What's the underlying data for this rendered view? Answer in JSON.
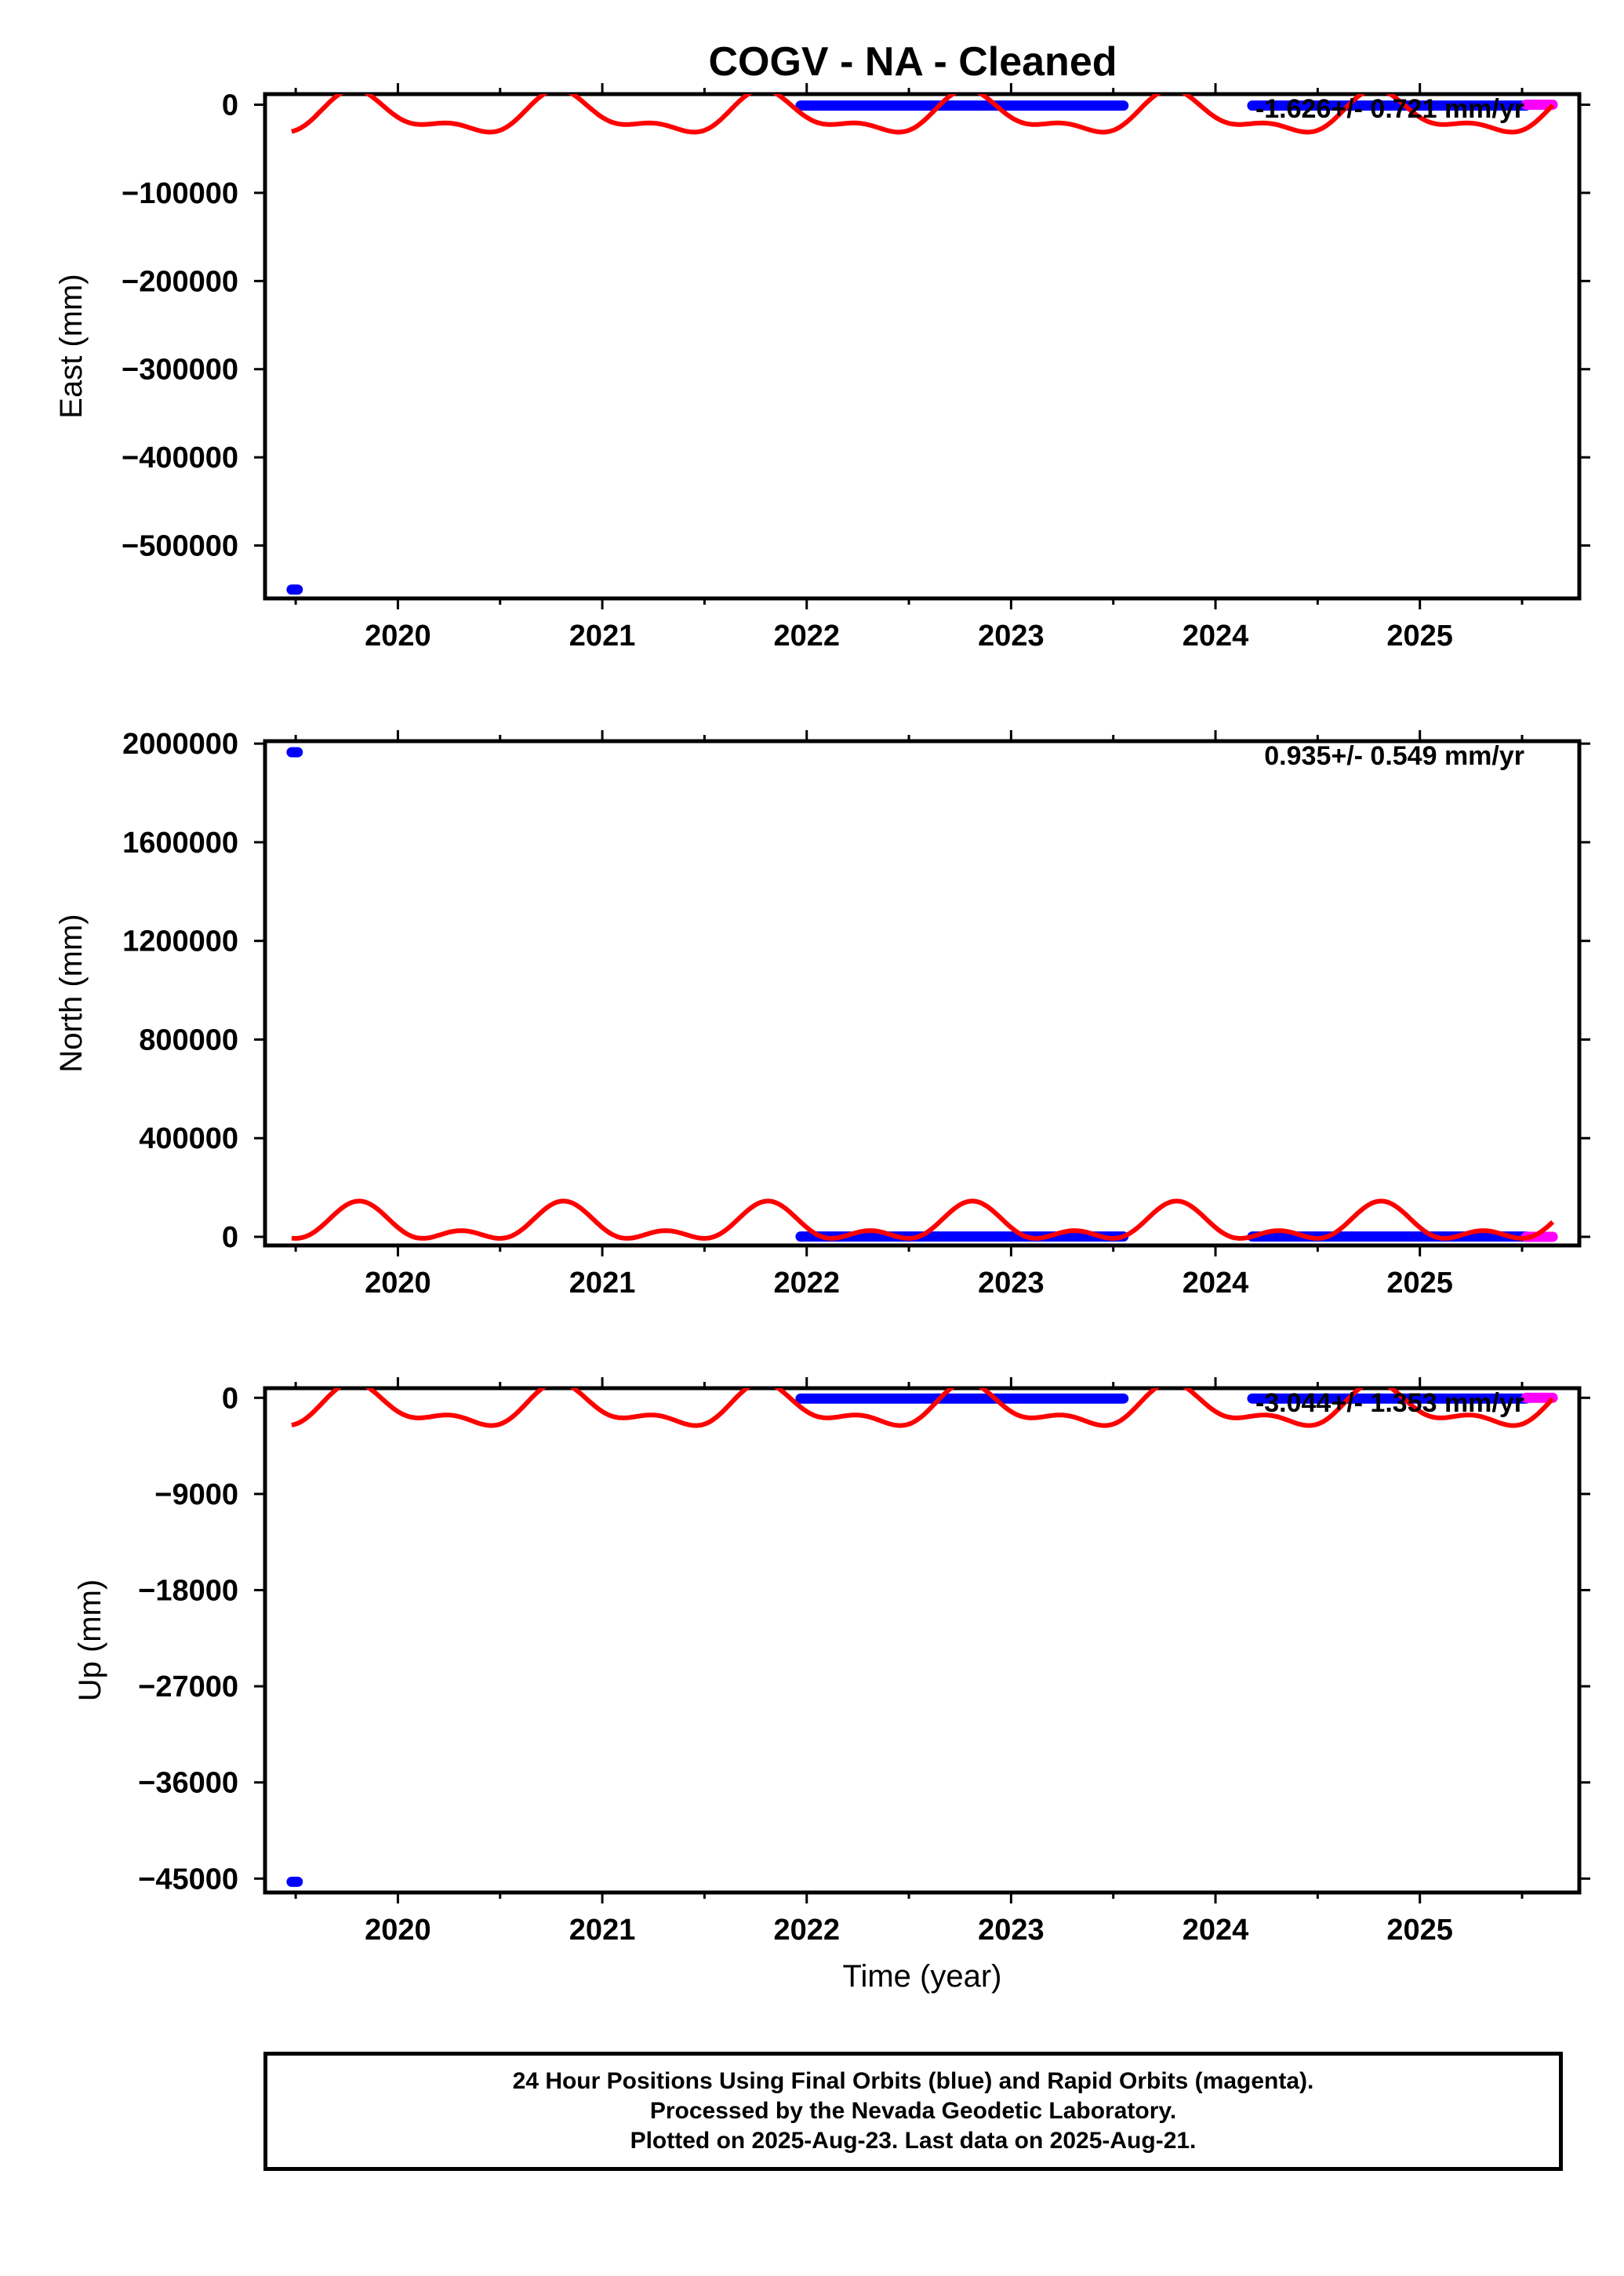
{
  "title": "COGV  - NA - Cleaned",
  "chart_data": [
    {
      "type": "scatter",
      "ylabel": "East (mm)",
      "xlabel": "",
      "xlim": [
        2019.35,
        2025.78
      ],
      "ylim": [
        -560000,
        12000
      ],
      "xticks": [
        "2020",
        "2021",
        "2022",
        "2023",
        "2024",
        "2025"
      ],
      "yticks": [
        {
          "value": 0,
          "label": "0"
        },
        {
          "value": -100000,
          "label": "−100000"
        },
        {
          "value": -200000,
          "label": "−200000"
        },
        {
          "value": -300000,
          "label": "−300000"
        },
        {
          "value": -400000,
          "label": "−400000"
        },
        {
          "value": -500000,
          "label": "−500000"
        }
      ],
      "annotation": "-1.626+/- 0.721 mm/yr",
      "series": [
        {
          "name": "Final Orbits",
          "color": "#0000ff",
          "segments": [
            {
              "x": [
                2019.48,
                2019.51
              ],
              "y": [
                -550000,
                -550000
              ]
            },
            {
              "x": [
                2021.97,
                2023.55
              ],
              "y": [
                -1000,
                -1000
              ]
            },
            {
              "x": [
                2024.18,
                2025.52
              ],
              "y": [
                -1000,
                -1000
              ]
            }
          ]
        },
        {
          "name": "Rapid Orbits",
          "color": "#ff00ff",
          "segments": [
            {
              "x": [
                2025.52,
                2025.65
              ],
              "y": [
                0,
                0
              ]
            }
          ]
        }
      ],
      "model": {
        "color": "#ff0000",
        "x_range": [
          2019.48,
          2025.65
        ],
        "offset": -12000,
        "annual_amplitude": 20000,
        "semiannual_amplitude": 10000,
        "annual_phase": 0.31,
        "semiannual_phase": 0.02
      }
    },
    {
      "type": "scatter",
      "ylabel": "North (mm)",
      "xlabel": "",
      "xlim": [
        2019.35,
        2025.78
      ],
      "ylim": [
        -35000,
        2010000
      ],
      "xticks": [
        "2020",
        "2021",
        "2022",
        "2023",
        "2024",
        "2025"
      ],
      "yticks": [
        {
          "value": 0,
          "label": "0"
        },
        {
          "value": 400000,
          "label": "400000"
        },
        {
          "value": 800000,
          "label": "800000"
        },
        {
          "value": 1200000,
          "label": "1200000"
        },
        {
          "value": 1600000,
          "label": "1600000"
        },
        {
          "value": 2000000,
          "label": "2000000"
        }
      ],
      "annotation": "0.935+/- 0.549 mm/yr",
      "series": [
        {
          "name": "Final Orbits",
          "color": "#0000ff",
          "segments": [
            {
              "x": [
                2019.48,
                2019.51
              ],
              "y": [
                1965000,
                1965000
              ]
            },
            {
              "x": [
                2021.97,
                2023.55
              ],
              "y": [
                1000,
                1000
              ]
            },
            {
              "x": [
                2024.18,
                2025.52
              ],
              "y": [
                1000,
                1000
              ]
            }
          ]
        },
        {
          "name": "Rapid Orbits",
          "color": "#ff00ff",
          "segments": [
            {
              "x": [
                2025.52,
                2025.65
              ],
              "y": [
                0,
                0
              ]
            }
          ]
        }
      ],
      "model": {
        "color": "#ff0000",
        "x_range": [
          2019.48,
          2025.65
        ],
        "offset": 45000,
        "annual_amplitude": 60000,
        "semiannual_amplitude": 40000,
        "annual_phase": 0.31,
        "semiannual_phase": 0.06
      }
    },
    {
      "type": "scatter",
      "ylabel": "Up (mm)",
      "xlabel": "Time (year)",
      "xlim": [
        2019.35,
        2025.78
      ],
      "ylim": [
        -46300,
        900
      ],
      "xticks": [
        "2020",
        "2021",
        "2022",
        "2023",
        "2024",
        "2025"
      ],
      "yticks": [
        {
          "value": 0,
          "label": "0"
        },
        {
          "value": -9000,
          "label": "−9000"
        },
        {
          "value": -18000,
          "label": "−18000"
        },
        {
          "value": -27000,
          "label": "−27000"
        },
        {
          "value": -36000,
          "label": "−36000"
        },
        {
          "value": -45000,
          "label": "−45000"
        }
      ],
      "annotation": "-3.044+/- 1.353 mm/yr",
      "series": [
        {
          "name": "Final Orbits",
          "color": "#0000ff",
          "segments": [
            {
              "x": [
                2019.48,
                2019.51
              ],
              "y": [
                -45300,
                -45300
              ]
            },
            {
              "x": [
                2021.97,
                2023.55
              ],
              "y": [
                -70,
                -70
              ]
            },
            {
              "x": [
                2024.18,
                2025.52
              ],
              "y": [
                -70,
                -70
              ]
            }
          ]
        },
        {
          "name": "Rapid Orbits",
          "color": "#ff00ff",
          "segments": [
            {
              "x": [
                2025.52,
                2025.65
              ],
              "y": [
                0,
                0
              ]
            }
          ]
        }
      ],
      "model": {
        "color": "#ff0000",
        "x_range": [
          2019.48,
          2025.65
        ],
        "offset": -1000,
        "annual_amplitude": 1600,
        "semiannual_amplitude": 900,
        "annual_phase": 0.31,
        "semiannual_phase": 0.02
      }
    }
  ],
  "footer": {
    "line1": "24 Hour Positions Using Final Orbits (blue) and Rapid Orbits (magenta).",
    "line2": "Processed by the Nevada Geodetic Laboratory.",
    "line3": "Plotted on 2025-Aug-23. Last data on 2025-Aug-21."
  }
}
